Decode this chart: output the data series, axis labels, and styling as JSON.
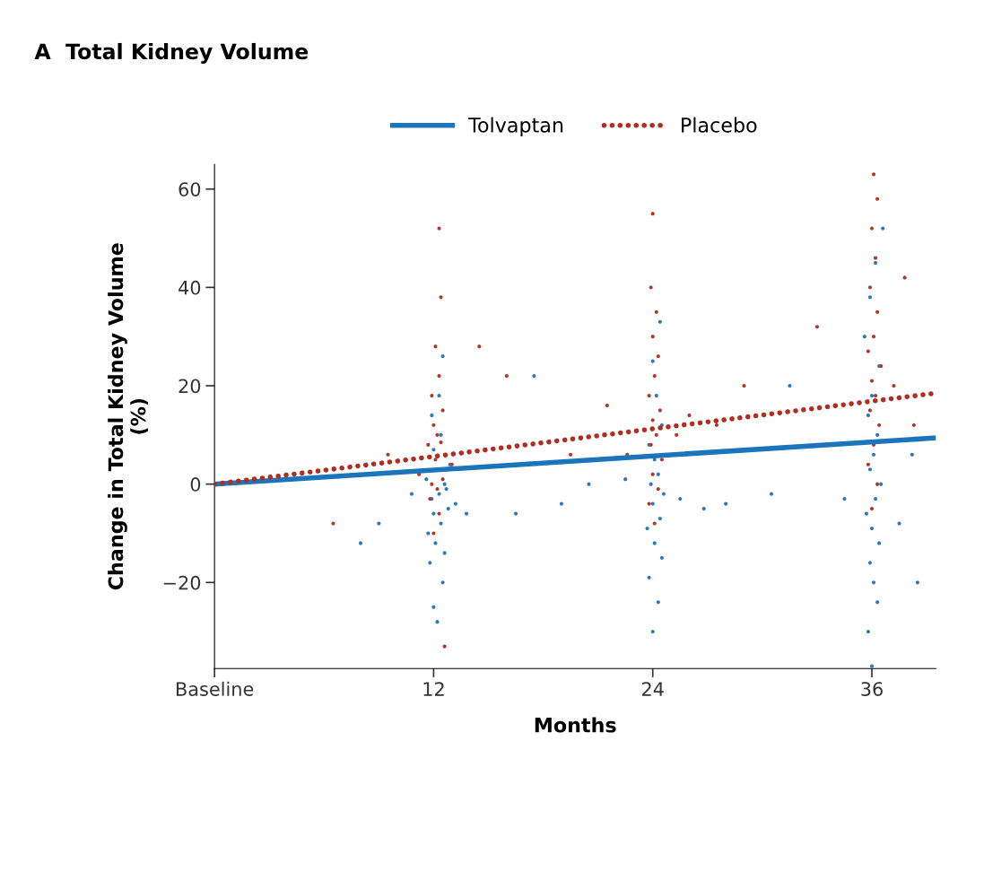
{
  "chart_data": {
    "type": "scatter",
    "title": "A  Total Kidney Volume",
    "xlabel": "Months",
    "ylabel": "Change in Total Kidney Volume\n(%)",
    "xlim": [
      0,
      39.5
    ],
    "xticks": [
      {
        "value": 0,
        "label": "Baseline"
      },
      12,
      24,
      36
    ],
    "ylim": [
      -37.5,
      65
    ],
    "yticks": [
      {
        "value": -20,
        "label": "−20"
      },
      0,
      20,
      40,
      60
    ],
    "legend": "top",
    "grid": false,
    "marker": "circle",
    "series": [
      {
        "color": "#2a78bd",
        "x": [
          12.2,
          12.0,
          12.5,
          11.8,
          12.6,
          12.1,
          11.7,
          12.4,
          12.0,
          12.8,
          11.9,
          12.3,
          12.6,
          11.6,
          12.7,
          12.9,
          12.0,
          12.4,
          11.9,
          12.3,
          12.5,
          13.2,
          10.8,
          13.8,
          24.0,
          24.3,
          23.8,
          24.5,
          24.1,
          23.7,
          24.4,
          24.0,
          24.6,
          23.9,
          24.3,
          24.1,
          23.8,
          24.5,
          24.2,
          24.0,
          24.4,
          25.5,
          22.5,
          26.8,
          36.0,
          35.8,
          36.3,
          36.1,
          35.9,
          36.4,
          36.0,
          35.7,
          36.2,
          36.5,
          35.9,
          36.1,
          36.3,
          35.8,
          36.0,
          36.4,
          35.6,
          35.9,
          36.2,
          36.6,
          37.5,
          34.5,
          38.2,
          8.0,
          9.0,
          16.5,
          19.0,
          20.5,
          28.0,
          30.5,
          31.5,
          17.5,
          38.5
        ],
        "values": [
          -28,
          -25,
          -20,
          -16,
          -14,
          -12,
          -10,
          -8,
          -6,
          -5,
          -3,
          -2,
          0,
          1,
          -1,
          4,
          7,
          10,
          14,
          18,
          26,
          -4,
          -2,
          -6,
          -30,
          -24,
          -19,
          -15,
          -12,
          -9,
          -7,
          -4,
          -2,
          0,
          2,
          5,
          8,
          12,
          18,
          25,
          33,
          -3,
          1,
          -5,
          -37,
          -30,
          -24,
          -20,
          -16,
          -12,
          -9,
          -6,
          -3,
          0,
          3,
          6,
          10,
          14,
          18,
          24,
          30,
          38,
          45,
          52,
          -8,
          -3,
          6,
          -12,
          -8,
          -6,
          -4,
          0,
          -4,
          -2,
          20,
          22,
          -20
        ]
      },
      {
        "color": "#b3362a",
        "x": [
          12.0,
          12.3,
          11.8,
          12.2,
          12.5,
          11.9,
          12.1,
          12.4,
          11.7,
          12.2,
          12.0,
          12.5,
          11.9,
          12.3,
          12.1,
          12.4,
          12.3,
          13.0,
          11.2,
          12.6,
          24.1,
          23.8,
          24.3,
          24.0,
          24.5,
          23.9,
          24.2,
          24.0,
          24.4,
          23.8,
          24.1,
          24.3,
          24.0,
          24.2,
          23.9,
          24.0,
          25.3,
          26.0,
          22.6,
          36.0,
          36.3,
          35.8,
          36.1,
          36.4,
          35.9,
          36.2,
          36.0,
          36.5,
          35.8,
          36.1,
          36.3,
          35.9,
          36.2,
          36.0,
          36.3,
          36.1,
          37.2,
          38.3,
          37.8,
          6.5,
          9.5,
          14.5,
          16.0,
          19.5,
          21.5,
          27.5,
          29.0,
          33.0
        ],
        "values": [
          -10,
          -6,
          -3,
          -1,
          1,
          0,
          5,
          8.5,
          8,
          10,
          12,
          15,
          18,
          22,
          28,
          38,
          52,
          4,
          2,
          -33,
          -8,
          -4,
          -1,
          2,
          5,
          8,
          10,
          13,
          15,
          18,
          22,
          26,
          30,
          35,
          40,
          55,
          10,
          14,
          6,
          -5,
          0,
          4,
          8,
          12,
          15,
          18,
          21,
          24,
          27,
          30,
          35,
          40,
          46,
          52,
          58,
          63,
          20,
          12,
          42,
          -8,
          6,
          28,
          22,
          6,
          16,
          12,
          20,
          32
        ]
      },
      {
        "type": "line",
        "name": "Tolvaptan",
        "color": "#1a75bb",
        "x": [
          0,
          39.5
        ],
        "values": [
          0,
          9.4
        ],
        "line_style": "solid",
        "marker": "none"
      },
      {
        "type": "line",
        "name": "Placebo",
        "color": "#b22d1f",
        "x": [
          0,
          39.5
        ],
        "values": [
          0,
          18.5
        ],
        "line_style": "dotted",
        "marker": "none"
      }
    ]
  }
}
